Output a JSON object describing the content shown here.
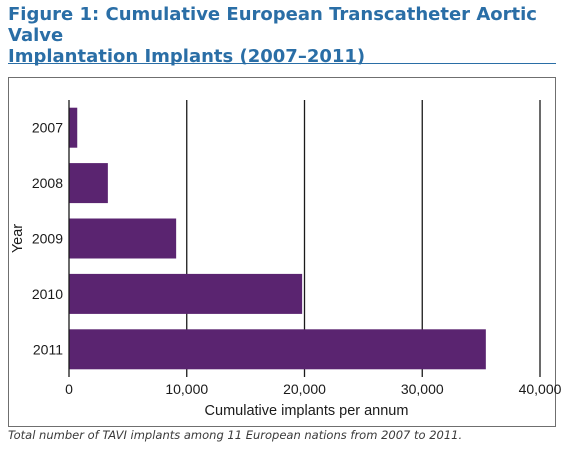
{
  "figure": {
    "title_line1": "Figure 1: Cumulative European Transcatheter Aortic Valve",
    "title_line2": "Implantation Implants (2007–2011)",
    "caption": "Total number of TAVI implants among 11 European nations from 2007 to 2011."
  },
  "colors": {
    "title": "#2a6ea6",
    "bar": "#5a2470",
    "gridline": "#1a1a1a",
    "text": "#1a1a1a"
  },
  "chart_data": {
    "type": "bar",
    "orientation": "horizontal",
    "categories": [
      "2007",
      "2008",
      "2009",
      "2010",
      "2011"
    ],
    "values": [
      700,
      3300,
      9100,
      19800,
      35400
    ],
    "xlabel": "Cumulative implants per annum",
    "ylabel": "Year",
    "xlim": [
      0,
      40000
    ],
    "xticks": [
      0,
      10000,
      20000,
      30000,
      40000
    ],
    "xtick_labels": [
      "0",
      "10,000",
      "20,000",
      "30,000",
      "40,000"
    ],
    "grid": "vertical"
  }
}
